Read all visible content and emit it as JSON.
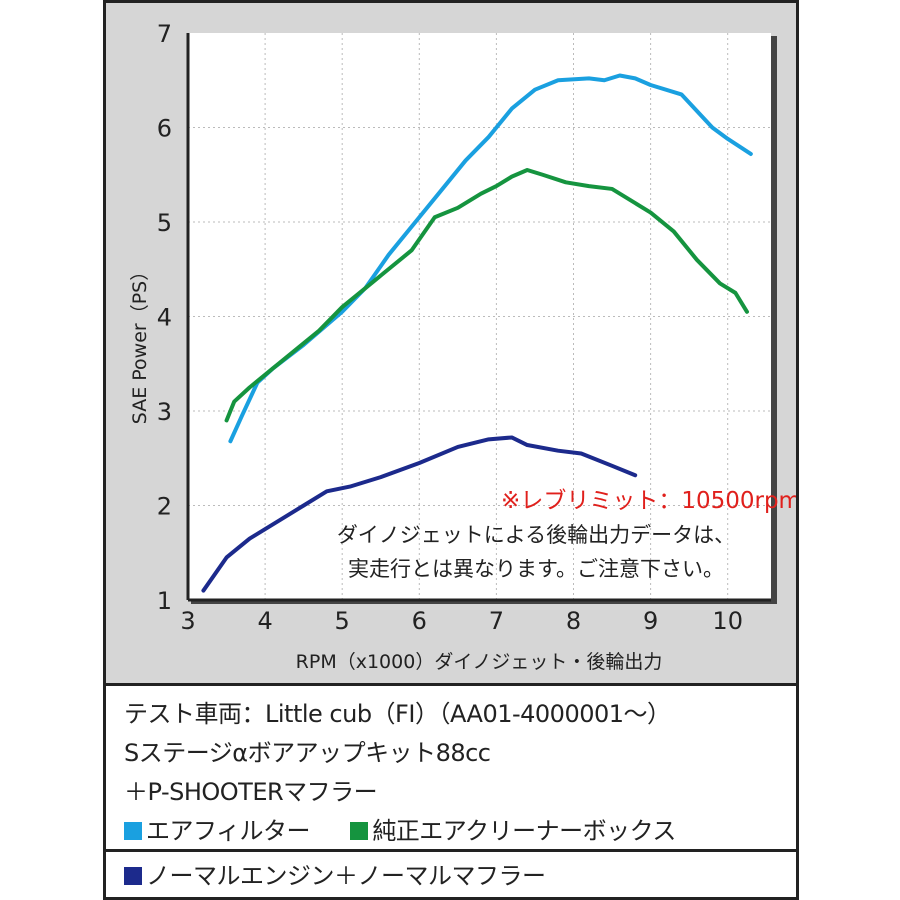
{
  "chart_data": {
    "type": "line",
    "xlabel": "RPM（x1000）ダイノジェット・後輪出力",
    "ylabel": "SAE Power（PS）",
    "xlim": [
      3,
      10.6
    ],
    "ylim": [
      1,
      7
    ],
    "xticks": [
      "3",
      "4",
      "5",
      "6",
      "7",
      "8",
      "9",
      "10"
    ],
    "yticks": [
      "1",
      "2",
      "3",
      "4",
      "5",
      "6",
      "7"
    ],
    "grid": true,
    "series": [
      {
        "name": "エアフィルター",
        "color": "#1aa0e0",
        "x": [
          3.55,
          3.7,
          3.9,
          4.1,
          4.5,
          5.0,
          5.3,
          5.6,
          6.0,
          6.3,
          6.6,
          6.9,
          7.2,
          7.5,
          7.8,
          8.2,
          8.4,
          8.6,
          8.8,
          9.0,
          9.4,
          9.8,
          10.0,
          10.3
        ],
        "y": [
          2.68,
          2.95,
          3.3,
          3.45,
          3.7,
          4.05,
          4.3,
          4.65,
          5.05,
          5.35,
          5.65,
          5.9,
          6.2,
          6.4,
          6.5,
          6.52,
          6.5,
          6.55,
          6.52,
          6.45,
          6.35,
          6.0,
          5.88,
          5.72
        ]
      },
      {
        "name": "純正エアクリーナーボックス",
        "color": "#15943f",
        "x": [
          3.5,
          3.6,
          3.8,
          4.1,
          4.4,
          4.7,
          5.0,
          5.3,
          5.6,
          5.9,
          6.2,
          6.5,
          6.8,
          7.0,
          7.2,
          7.4,
          7.6,
          7.9,
          8.2,
          8.5,
          8.8,
          9.0,
          9.3,
          9.6,
          9.9,
          10.1,
          10.25
        ],
        "y": [
          2.9,
          3.1,
          3.25,
          3.45,
          3.65,
          3.85,
          4.1,
          4.3,
          4.5,
          4.7,
          5.05,
          5.15,
          5.3,
          5.38,
          5.48,
          5.55,
          5.5,
          5.42,
          5.38,
          5.35,
          5.2,
          5.1,
          4.9,
          4.6,
          4.35,
          4.25,
          4.05
        ]
      },
      {
        "name": "ノーマルエンジン＋ノーマルマフラー",
        "color": "#1c2a8c",
        "x": [
          3.2,
          3.5,
          3.8,
          4.2,
          4.5,
          4.8,
          5.1,
          5.5,
          6.0,
          6.5,
          6.9,
          7.2,
          7.4,
          7.8,
          8.1,
          8.5,
          8.8
        ],
        "y": [
          1.1,
          1.45,
          1.65,
          1.85,
          2.0,
          2.15,
          2.2,
          2.3,
          2.45,
          2.62,
          2.7,
          2.72,
          2.64,
          2.58,
          2.55,
          2.42,
          2.32
        ]
      }
    ],
    "annotations": {
      "rev_limit": "※レブリミット：10500rpm",
      "note1": "ダイノジェットによる後輪出力データは、",
      "note2": "実走行とは異なります。ご注意下さい。"
    }
  },
  "legend": {
    "line1": "テスト車両：Little cub（FI）（AA01-4000001～）",
    "line2": "Sステージαボアアップキット88cc",
    "line3": "＋P-SHOOTERマフラー",
    "item1": "エアフィルター",
    "item2": "純正エアクリーナーボックス",
    "item3": "ノーマルエンジン＋ノーマルマフラー"
  }
}
